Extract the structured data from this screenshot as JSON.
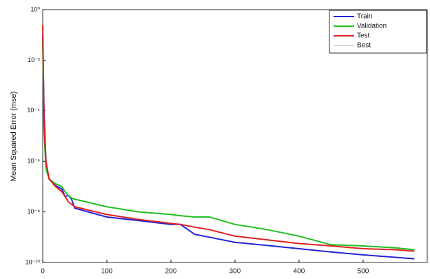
{
  "chart_data": {
    "type": "line",
    "y_label": "Mean Squared Error  (mse)",
    "y_scale": "log",
    "legend_position": "upper right",
    "x": [
      0,
      2,
      5,
      10,
      20,
      30,
      35,
      40,
      45,
      50,
      100,
      150,
      200,
      215,
      237,
      260,
      300,
      350,
      400,
      450,
      500,
      550,
      580
    ],
    "series": [
      {
        "name": "Train",
        "color": "#2323d8",
        "values": [
          0.1,
          0.0001,
          1e-06,
          2e-07,
          1.1e-07,
          8e-08,
          4e-08,
          4.5e-08,
          3.2e-08,
          1.4e-08,
          6.3e-09,
          4.5e-09,
          3.2e-09,
          3.2e-09,
          1.3e-09,
          1e-09,
          6.3e-10,
          4.7e-10,
          3.5e-10,
          2.6e-10,
          2e-10,
          1.6e-10,
          1.4e-10
        ]
      },
      {
        "name": "Validation",
        "color": "#1fbf1f",
        "values": [
          0.063,
          1.6e-05,
          5e-07,
          2e-07,
          1.3e-07,
          1e-07,
          6.3e-08,
          4.5e-08,
          3.5e-08,
          3.2e-08,
          1.6e-08,
          1e-08,
          7.9e-09,
          7.1e-09,
          6.3e-09,
          6.3e-09,
          3.2e-09,
          2e-09,
          1.1e-09,
          5e-10,
          4.5e-10,
          3.8e-10,
          3.2e-10
        ]
      },
      {
        "name": "Test",
        "color": "#e02020",
        "values": [
          0.25,
          3.2e-05,
          1e-06,
          2e-07,
          1e-07,
          6.3e-08,
          4e-08,
          2.5e-08,
          2e-08,
          1.6e-08,
          7.9e-09,
          5e-09,
          3.5e-09,
          3.2e-09,
          2.5e-09,
          2e-09,
          1.1e-09,
          7.9e-10,
          5.6e-10,
          4.5e-10,
          3.5e-10,
          3.2e-10,
          2.8e-10
        ]
      },
      {
        "name": "Best",
        "color": "#d8d8d8",
        "x": [],
        "values": []
      }
    ],
    "xlim": [
      0,
      600
    ],
    "xticks": [
      0,
      100,
      200,
      300,
      400,
      500
    ],
    "ylim": [
      1e-10,
      1
    ],
    "yticks": [
      {
        "value": 1,
        "label": "10⁰"
      },
      {
        "value": 0.01,
        "label": "10⁻²"
      },
      {
        "value": 0.0001,
        "label": "10⁻⁴"
      },
      {
        "value": 1e-06,
        "label": "10⁻⁶"
      },
      {
        "value": 1e-08,
        "label": "10⁻⁸"
      },
      {
        "value": 1e-10,
        "label": "10⁻¹⁰"
      }
    ]
  }
}
